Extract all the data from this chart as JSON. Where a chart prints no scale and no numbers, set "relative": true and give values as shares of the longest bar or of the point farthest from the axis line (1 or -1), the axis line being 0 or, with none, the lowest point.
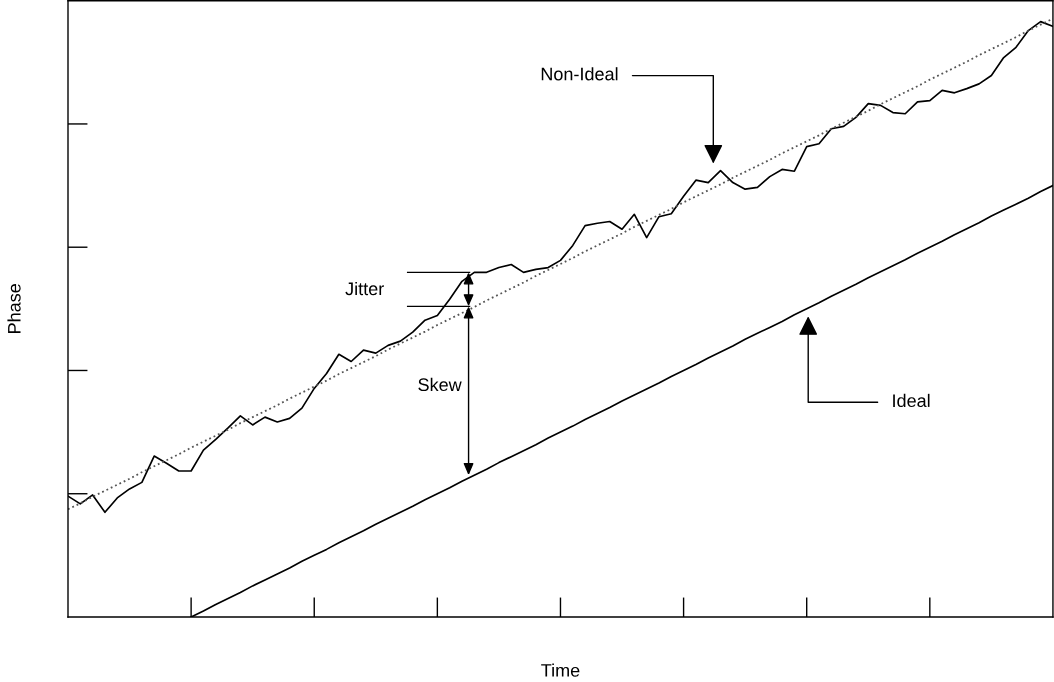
{
  "chart_data": {
    "type": "line",
    "xlabel": "Time",
    "ylabel": "Phase",
    "relative": true,
    "tick_labels": false,
    "grid": false,
    "legend": false,
    "marker": "none",
    "categories": [
      null,
      null,
      null,
      null,
      null,
      null,
      null,
      null,
      null,
      null,
      null,
      null,
      null,
      null,
      null,
      null,
      null,
      null,
      null,
      null,
      null,
      null,
      null,
      null,
      null,
      null,
      null,
      null,
      null,
      null,
      null,
      null,
      null,
      null,
      null,
      null,
      null,
      null,
      null,
      null,
      null,
      null,
      null,
      null,
      null,
      null,
      null,
      null,
      null,
      null,
      null,
      null,
      null,
      null,
      null,
      null,
      null,
      null,
      null,
      null,
      null,
      null,
      null,
      null,
      null,
      null,
      null,
      null,
      null,
      null,
      null,
      null,
      null,
      null,
      null,
      null,
      null,
      null,
      null,
      null,
      null
    ],
    "series": [
      {
        "color": "#000000",
        "line_style": "solid",
        "values": [
          0.202,
          0.189,
          0.204,
          0.175,
          0.199,
          0.214,
          0.225,
          0.269,
          0.257,
          0.244,
          0.244,
          0.279,
          0.297,
          0.316,
          0.336,
          0.321,
          0.334,
          0.326,
          0.332,
          0.349,
          0.382,
          0.407,
          0.439,
          0.427,
          0.446,
          0.441,
          0.454,
          0.461,
          0.476,
          0.496,
          0.504,
          0.531,
          0.561,
          0.576,
          0.576,
          0.584,
          0.589,
          0.576,
          0.581,
          0.584,
          0.596,
          0.621,
          0.654,
          0.658,
          0.661,
          0.648,
          0.673,
          0.634,
          0.669,
          0.674,
          0.703,
          0.73,
          0.726,
          0.746,
          0.726,
          0.715,
          0.718,
          0.736,
          0.748,
          0.745,
          0.786,
          0.791,
          0.816,
          0.82,
          0.835,
          0.858,
          0.855,
          0.843,
          0.841,
          0.861,
          0.863,
          0.88,
          0.876,
          0.883,
          0.891,
          0.905,
          0.935,
          0.952,
          0.98,
          0.995,
          0.987
        ]
      },
      {
        "color": "#000000",
        "line_style": "solid",
        "values": [
          null,
          null,
          null,
          null,
          null,
          null,
          null,
          null,
          null,
          null,
          0,
          0.01,
          0.021,
          0.031,
          0.041,
          0.052,
          0.062,
          0.072,
          0.082,
          0.093,
          0.103,
          0.113,
          0.124,
          0.134,
          0.144,
          0.155,
          0.165,
          0.175,
          0.185,
          0.196,
          0.206,
          0.216,
          0.227,
          0.237,
          0.247,
          0.258,
          0.268,
          0.278,
          0.288,
          0.299,
          0.309,
          0.319,
          0.33,
          0.34,
          0.35,
          0.361,
          0.371,
          0.381,
          0.391,
          0.402,
          0.412,
          0.422,
          0.433,
          0.443,
          0.453,
          0.464,
          0.474,
          0.484,
          0.494,
          0.505,
          0.515,
          0.525,
          0.536,
          0.546,
          0.556,
          0.567,
          0.577,
          0.587,
          0.597,
          0.608,
          0.618,
          0.628,
          0.639,
          0.649,
          0.659,
          0.67,
          0.68,
          0.69,
          0.7,
          0.711,
          0.721
        ]
      },
      {
        "color": "#555555",
        "line_style": "dotted",
        "values": [
          0.18,
          0.19,
          0.201,
          0.211,
          0.221,
          0.231,
          0.242,
          0.252,
          0.262,
          0.272,
          0.283,
          0.293,
          0.303,
          0.313,
          0.324,
          0.334,
          0.344,
          0.354,
          0.365,
          0.375,
          0.385,
          0.395,
          0.406,
          0.416,
          0.426,
          0.436,
          0.447,
          0.457,
          0.467,
          0.477,
          0.488,
          0.498,
          0.508,
          0.518,
          0.529,
          0.539,
          0.549,
          0.559,
          0.57,
          0.58,
          0.59,
          0.6,
          0.611,
          0.621,
          0.631,
          0.641,
          0.652,
          0.662,
          0.672,
          0.682,
          0.693,
          0.703,
          0.713,
          0.723,
          0.734,
          0.744,
          0.754,
          0.764,
          0.775,
          0.785,
          0.795,
          0.805,
          0.816,
          0.826,
          0.836,
          0.846,
          0.857,
          0.867,
          0.877,
          0.887,
          0.898,
          0.908,
          0.918,
          0.928,
          0.939,
          0.949,
          0.959,
          0.969,
          0.98,
          0.99,
          1.0
        ]
      }
    ],
    "annotations": [
      "Jitter",
      "Skew",
      "Non-Ideal",
      "Ideal"
    ]
  }
}
